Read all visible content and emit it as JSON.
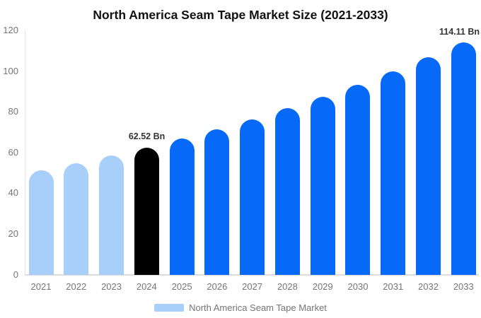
{
  "chart": {
    "title": "North America Seam Tape Market Size (2021-2033)",
    "legend_label": "North America Seam Tape Market"
  },
  "chart_data": {
    "type": "bar",
    "title": "North America Seam Tape Market Size (2021-2033)",
    "categories": [
      "2021",
      "2022",
      "2023",
      "2024",
      "2025",
      "2026",
      "2027",
      "2028",
      "2029",
      "2030",
      "2031",
      "2032",
      "2033"
    ],
    "series": [
      {
        "name": "North America Seam Tape Market",
        "values": [
          51.15,
          54.69,
          58.48,
          62.52,
          66.85,
          71.47,
          76.41,
          81.7,
          87.35,
          93.39,
          99.85,
          106.75,
          114.11
        ]
      }
    ],
    "unit": "Bn",
    "xlabel": "",
    "ylabel": "",
    "ylim": [
      0,
      120
    ],
    "yticks": [
      0,
      20,
      40,
      60,
      80,
      100,
      120
    ],
    "grid": false,
    "legend_position": "bottom",
    "bar_colors": [
      "#a8cefa",
      "#a8cefa",
      "#a8cefa",
      "#000000",
      "#0669f7",
      "#0669f7",
      "#0669f7",
      "#0669f7",
      "#0669f7",
      "#0669f7",
      "#0669f7",
      "#0669f7",
      "#0669f7"
    ],
    "annotations": [
      {
        "category": "2024",
        "text": "62.52 Bn"
      },
      {
        "category": "2033",
        "text": "114.11 Bn"
      }
    ],
    "colors": {
      "historical": "#a8cefa",
      "base_year": "#000000",
      "forecast": "#0669f7",
      "axis_text": "#757575",
      "axis_line": "#e0e0e0",
      "annotation_text": "#333333"
    }
  }
}
